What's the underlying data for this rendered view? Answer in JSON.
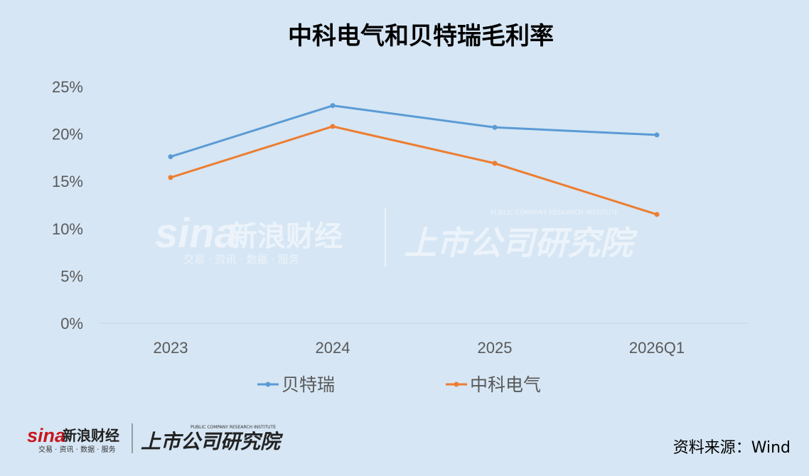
{
  "chart_data": {
    "type": "line",
    "title": "中科电气和贝特瑞毛利率",
    "categories": [
      "2023",
      "2024",
      "2025",
      "2026Q1"
    ],
    "y_ticks": [
      "0%",
      "5%",
      "10%",
      "15%",
      "20%",
      "25%"
    ],
    "ylim": [
      0,
      25
    ],
    "grid": false,
    "legend_position": "bottom",
    "series": [
      {
        "name": "贝特瑞",
        "color": "#5b9bd5",
        "values": [
          17.6,
          23.0,
          20.7,
          19.9
        ]
      },
      {
        "name": "中科电气",
        "color": "#ed7d31",
        "values": [
          15.4,
          20.8,
          16.9,
          11.5
        ]
      }
    ]
  },
  "watermark": {
    "brand": "sina",
    "cn": "新浪财经",
    "sub": "交易 · 资讯 · 数据 · 服务",
    "institute": "上市公司研究院",
    "institute_en": "PUBLIC COMPANY RESEARCH INSTITUTE"
  },
  "footer": {
    "brand": "sina",
    "cn": "新浪财经",
    "sub": "交易 · 资讯 · 数据 · 服务",
    "institute": "上市公司研究院",
    "institute_en": "PUBLIC COMPANY RESEARCH INSTITUTE",
    "source": "资料来源：Wind"
  }
}
